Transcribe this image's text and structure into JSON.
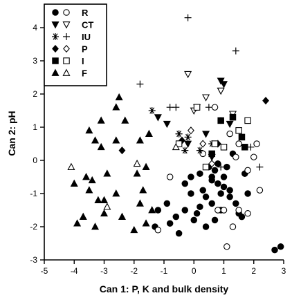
{
  "chart_data": {
    "type": "scatter",
    "xlabel": "Can 1: P, K and bulk density",
    "ylabel": "Can 2: pH",
    "xlim": [
      -5,
      3
    ],
    "ylim": [
      -3,
      4.5
    ],
    "xticks": [
      "-5",
      "-4",
      "-3",
      "-2",
      "-1",
      "0",
      "1",
      "2",
      "3"
    ],
    "yticks": [
      "-3",
      "-2",
      "-1",
      "0",
      "1",
      "2",
      "3",
      "4"
    ],
    "legend_position": "top-left",
    "series": [
      {
        "name": "R",
        "marker": "circle",
        "filled": true,
        "points": [
          [
            0.5,
            -0.2
          ],
          [
            0.6,
            -0.6
          ],
          [
            0.8,
            -0.7
          ],
          [
            1.0,
            -0.5
          ],
          [
            1.2,
            -0.9
          ],
          [
            0.4,
            -1.1
          ],
          [
            0.6,
            -1.3
          ],
          [
            0.9,
            -1.5
          ],
          [
            1.2,
            -1.1
          ],
          [
            1.4,
            -1.3
          ],
          [
            1.6,
            -1.7
          ],
          [
            1.7,
            -0.4
          ],
          [
            0.8,
            -0.1
          ],
          [
            1.1,
            -0.2
          ],
          [
            0.7,
            -0.3
          ],
          [
            0.3,
            -0.9
          ],
          [
            0.2,
            -1.4
          ],
          [
            -0.1,
            -1.0
          ],
          [
            -0.3,
            -1.5
          ],
          [
            -0.6,
            -1.7
          ],
          [
            -0.9,
            -1.3
          ],
          [
            -1.2,
            -1.5
          ],
          [
            -1.3,
            -2.0
          ],
          [
            -0.5,
            -2.2
          ],
          [
            0.0,
            -1.8
          ],
          [
            0.4,
            -2.0
          ],
          [
            1.5,
            -1.6
          ],
          [
            1.8,
            -1.0
          ],
          [
            2.7,
            -2.7
          ],
          [
            2.9,
            -2.6
          ],
          [
            -0.3,
            -0.7
          ],
          [
            0.2,
            -0.4
          ],
          [
            1.3,
            0.2
          ],
          [
            0.6,
            -0.5
          ],
          [
            0.9,
            -1.0
          ],
          [
            1.0,
            -0.8
          ],
          [
            -0.1,
            -0.5
          ],
          [
            0.1,
            -1.6
          ],
          [
            -0.8,
            -1.9
          ],
          [
            0.7,
            -1.8
          ]
        ]
      },
      {
        "name": "R",
        "marker": "circle",
        "filled": false,
        "points": [
          [
            0.7,
            1.6
          ],
          [
            1.2,
            0.8
          ],
          [
            1.5,
            0.5
          ],
          [
            1.4,
            0.1
          ],
          [
            1.8,
            -0.3
          ],
          [
            2.2,
            -0.9
          ],
          [
            2.0,
            0.1
          ],
          [
            2.1,
            0.5
          ],
          [
            1.0,
            -1.5
          ],
          [
            1.3,
            -2.0
          ],
          [
            1.5,
            -1.5
          ],
          [
            0.8,
            -1.5
          ],
          [
            1.1,
            -2.6
          ],
          [
            -1.2,
            -2.1
          ],
          [
            -0.8,
            -0.5
          ],
          [
            0.3,
            0.2
          ],
          [
            0.9,
            1.2
          ],
          [
            1.8,
            -1.6
          ]
        ]
      },
      {
        "name": "CT",
        "marker": "triangle-down",
        "filled": true,
        "points": [
          [
            0.9,
            2.4
          ],
          [
            1.0,
            2.3
          ],
          [
            0.9,
            2.1
          ],
          [
            -1.2,
            1.3
          ],
          [
            -0.9,
            1.1
          ],
          [
            1.2,
            1.1
          ],
          [
            0.4,
            0.8
          ],
          [
            0.1,
            1.6
          ],
          [
            0.6,
            0.1
          ],
          [
            -0.2,
            0.5
          ]
        ]
      },
      {
        "name": "CT",
        "marker": "triangle-down",
        "filled": false,
        "points": [
          [
            -0.2,
            2.6
          ],
          [
            0.9,
            2.1
          ],
          [
            0.4,
            1.9
          ],
          [
            1.3,
            1.4
          ],
          [
            0.0,
            1.5
          ]
        ]
      },
      {
        "name": "IU",
        "marker": "plus",
        "filled": false,
        "points": [
          [
            -0.2,
            4.3
          ],
          [
            1.4,
            3.3
          ],
          [
            -1.8,
            2.3
          ],
          [
            -0.6,
            1.6
          ],
          [
            0.5,
            1.6
          ],
          [
            1.9,
            0.4
          ],
          [
            2.2,
            -0.2
          ],
          [
            -0.5,
            0.8
          ],
          [
            0.9,
            -0.2
          ],
          [
            -0.8,
            1.6
          ]
        ]
      },
      {
        "name": "IU",
        "marker": "asterisk",
        "filled": false,
        "points": [
          [
            -1.4,
            1.5
          ],
          [
            -0.3,
            0.3
          ],
          [
            0.2,
            0.3
          ],
          [
            -0.2,
            0.7
          ],
          [
            0.6,
            0.5
          ],
          [
            -0.5,
            0.8
          ]
        ]
      },
      {
        "name": "P",
        "marker": "diamond",
        "filled": true,
        "points": [
          [
            2.4,
            1.8
          ],
          [
            -2.4,
            0.3
          ],
          [
            0.8,
            0.5
          ],
          [
            -0.4,
            0.6
          ]
        ]
      },
      {
        "name": "P",
        "marker": "diamond",
        "filled": false,
        "points": [
          [
            0.3,
            0.5
          ],
          [
            0.6,
            -0.1
          ],
          [
            -0.1,
            0.9
          ]
        ]
      },
      {
        "name": "I",
        "marker": "square",
        "filled": true,
        "points": [
          [
            1.3,
            1.3
          ],
          [
            1.6,
            0.7
          ],
          [
            0.9,
            1.2
          ],
          [
            1.7,
            0.4
          ],
          [
            0.6,
            0.2
          ]
        ]
      },
      {
        "name": "I",
        "marker": "square",
        "filled": false,
        "points": [
          [
            0.1,
            1.6
          ],
          [
            1.8,
            1.2
          ],
          [
            -0.5,
            0.5
          ],
          [
            0.7,
            0.5
          ],
          [
            0.4,
            -0.2
          ],
          [
            1.0,
            0.4
          ],
          [
            1.5,
            0.9
          ]
        ]
      },
      {
        "name": "F",
        "marker": "triangle",
        "filled": true,
        "points": [
          [
            -2.5,
            1.9
          ],
          [
            -2.6,
            1.6
          ],
          [
            -3.1,
            1.2
          ],
          [
            -2.3,
            1.2
          ],
          [
            -3.5,
            0.9
          ],
          [
            -3.3,
            0.6
          ],
          [
            -2.6,
            0.6
          ],
          [
            -3.1,
            0.4
          ],
          [
            -1.8,
            0.6
          ],
          [
            -1.5,
            0.8
          ],
          [
            -1.6,
            -0.2
          ],
          [
            -1.7,
            -0.9
          ],
          [
            -1.9,
            -0.4
          ],
          [
            -3.6,
            -0.5
          ],
          [
            -3.5,
            -0.9
          ],
          [
            -3.0,
            -1.2
          ],
          [
            -3.7,
            -1.7
          ],
          [
            -3.9,
            -1.9
          ],
          [
            -3.3,
            -2.0
          ],
          [
            -2.0,
            -2.1
          ],
          [
            -1.4,
            -1.5
          ],
          [
            -3.4,
            -0.6
          ],
          [
            -2.9,
            -0.4
          ],
          [
            -4.0,
            -0.7
          ],
          [
            -3.0,
            -1.6
          ],
          [
            -1.6,
            -1.9
          ],
          [
            -3.2,
            -1.2
          ],
          [
            -2.6,
            -1.0
          ],
          [
            -2.4,
            -1.7
          ],
          [
            -1.8,
            -1.3
          ]
        ]
      },
      {
        "name": "F",
        "marker": "triangle",
        "filled": false,
        "points": [
          [
            -4.1,
            -0.2
          ],
          [
            -1.9,
            -0.1
          ],
          [
            -2.9,
            -1.4
          ],
          [
            -0.6,
            0.4
          ]
        ]
      }
    ],
    "legend": [
      {
        "label": "R",
        "filled_marker": "circle",
        "open_marker": "circle"
      },
      {
        "label": "CT",
        "filled_marker": "triangle-down",
        "open_marker": "triangle-down"
      },
      {
        "label": "IU",
        "filled_marker": "asterisk",
        "open_marker": "plus"
      },
      {
        "label": "P",
        "filled_marker": "diamond",
        "open_marker": "diamond"
      },
      {
        "label": "I",
        "filled_marker": "square",
        "open_marker": "square"
      },
      {
        "label": "F",
        "filled_marker": "triangle",
        "open_marker": "triangle"
      }
    ]
  }
}
